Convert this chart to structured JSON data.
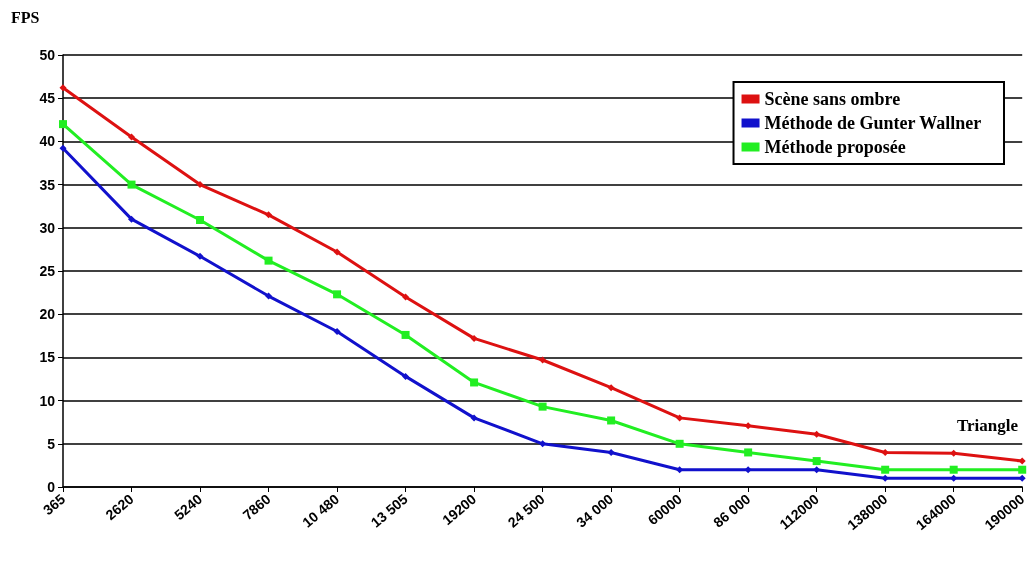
{
  "chart_data": {
    "type": "line",
    "ylabel": "FPS",
    "xlabel": "Triangle",
    "categories": [
      "365",
      "2620",
      "5240",
      "7860",
      "10 480",
      "13 505",
      "19200",
      "24 500",
      "34 000",
      "60000",
      "86 000",
      "112000",
      "138000",
      "164000",
      "190000"
    ],
    "series": [
      {
        "name": "Scène sans ombre",
        "color": "#dd1111",
        "marker": "diamond",
        "values": [
          46.2,
          40.5,
          35,
          31.5,
          27.2,
          22,
          17.2,
          14.7,
          11.5,
          8,
          7.1,
          6.1,
          4,
          3.9,
          3
        ]
      },
      {
        "name": "Méthode de Gunter Wallner",
        "color": "#1111cc",
        "marker": "diamond",
        "values": [
          39.2,
          31,
          26.7,
          22.1,
          18,
          12.8,
          8,
          5,
          4,
          2,
          2,
          2,
          1,
          1,
          1
        ]
      },
      {
        "name": "Méthode proposée",
        "color": "#22ee22",
        "marker": "square",
        "values": [
          42,
          35,
          30.9,
          26.2,
          22.3,
          17.6,
          12.1,
          9.3,
          7.7,
          5,
          4,
          3,
          2,
          2,
          2
        ]
      }
    ],
    "ylim": [
      0,
      50
    ],
    "yticks": [
      0,
      5,
      10,
      15,
      20,
      25,
      30,
      35,
      40,
      45,
      50
    ],
    "grid": "y",
    "legend": "top right",
    "line_style": "solid"
  }
}
